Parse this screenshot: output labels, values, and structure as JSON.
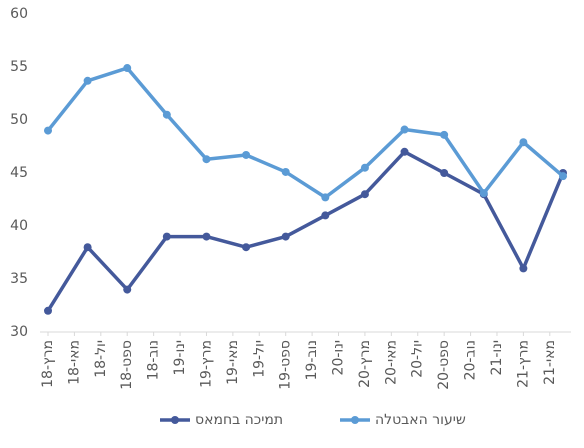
{
  "chart_data": {
    "type": "line",
    "x": [
      0,
      3,
      6,
      9,
      12,
      15,
      18,
      21,
      24,
      27,
      30,
      33,
      36,
      39
    ],
    "xlim": [
      0,
      39
    ],
    "xticks": [
      {
        "value": 0,
        "label": "מרץ-18"
      },
      {
        "value": 2,
        "label": "מאי-18"
      },
      {
        "value": 4,
        "label": "יול-18"
      },
      {
        "value": 6,
        "label": "ספט-18"
      },
      {
        "value": 8,
        "label": "נוב-18"
      },
      {
        "value": 10,
        "label": "ינו-19"
      },
      {
        "value": 12,
        "label": "מרץ-19"
      },
      {
        "value": 14,
        "label": "מאי-19"
      },
      {
        "value": 16,
        "label": "יול-19"
      },
      {
        "value": 18,
        "label": "ספט-19"
      },
      {
        "value": 20,
        "label": "נוב-19"
      },
      {
        "value": 22,
        "label": "ינו-20"
      },
      {
        "value": 24,
        "label": "מרץ-20"
      },
      {
        "value": 26,
        "label": "מאי-20"
      },
      {
        "value": 28,
        "label": "יול-20"
      },
      {
        "value": 30,
        "label": "ספט-20"
      },
      {
        "value": 32,
        "label": "נוב-20"
      },
      {
        "value": 34,
        "label": "ינו-21"
      },
      {
        "value": 36,
        "label": "מרץ-21"
      },
      {
        "value": 38,
        "label": "מאי-21"
      }
    ],
    "ylim": [
      30,
      60
    ],
    "yticks": [
      30,
      35,
      40,
      45,
      50,
      55,
      60
    ],
    "series": [
      {
        "name": "תמיכה בחמאס",
        "color": "#44599b",
        "values": [
          32,
          38,
          34,
          39,
          39,
          38,
          39,
          41,
          43,
          47,
          45,
          43,
          36,
          45
        ]
      },
      {
        "name": "שיעור האבטלה",
        "color": "#5b9bd5",
        "values": [
          49,
          53.7,
          54.9,
          50.5,
          46.3,
          46.7,
          45.1,
          42.7,
          45.5,
          49.1,
          48.6,
          43.1,
          47.9,
          44.7
        ]
      }
    ],
    "legend": "bottom"
  }
}
